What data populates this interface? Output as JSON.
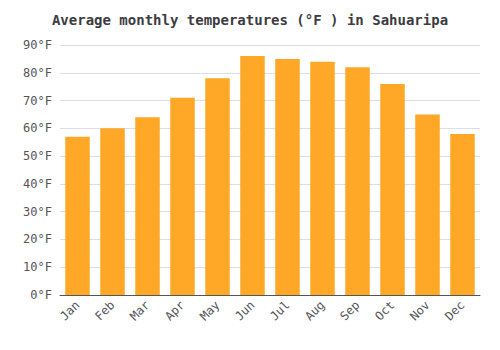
{
  "chart_data": {
    "type": "bar",
    "title": "Average monthly temperatures (°F ) in Sahuaripa",
    "categories": [
      "Jan",
      "Feb",
      "Mar",
      "Apr",
      "May",
      "Jun",
      "Jul",
      "Aug",
      "Sep",
      "Oct",
      "Nov",
      "Dec"
    ],
    "values": [
      57,
      60,
      64,
      71,
      78,
      86,
      85,
      84,
      82,
      76,
      65,
      58
    ],
    "color": "#FFA726",
    "ylim": [
      0,
      90
    ],
    "yticks": [
      {
        "value": 0,
        "label": "0°F"
      },
      {
        "value": 10,
        "label": "10°F"
      },
      {
        "value": 20,
        "label": "20°F"
      },
      {
        "value": 30,
        "label": "30°F"
      },
      {
        "value": 40,
        "label": "40°F"
      },
      {
        "value": 50,
        "label": "50°F"
      },
      {
        "value": 60,
        "label": "60°F"
      },
      {
        "value": 70,
        "label": "70°F"
      },
      {
        "value": 80,
        "label": "80°F"
      },
      {
        "value": 90,
        "label": "90°F"
      }
    ],
    "grid": true
  }
}
